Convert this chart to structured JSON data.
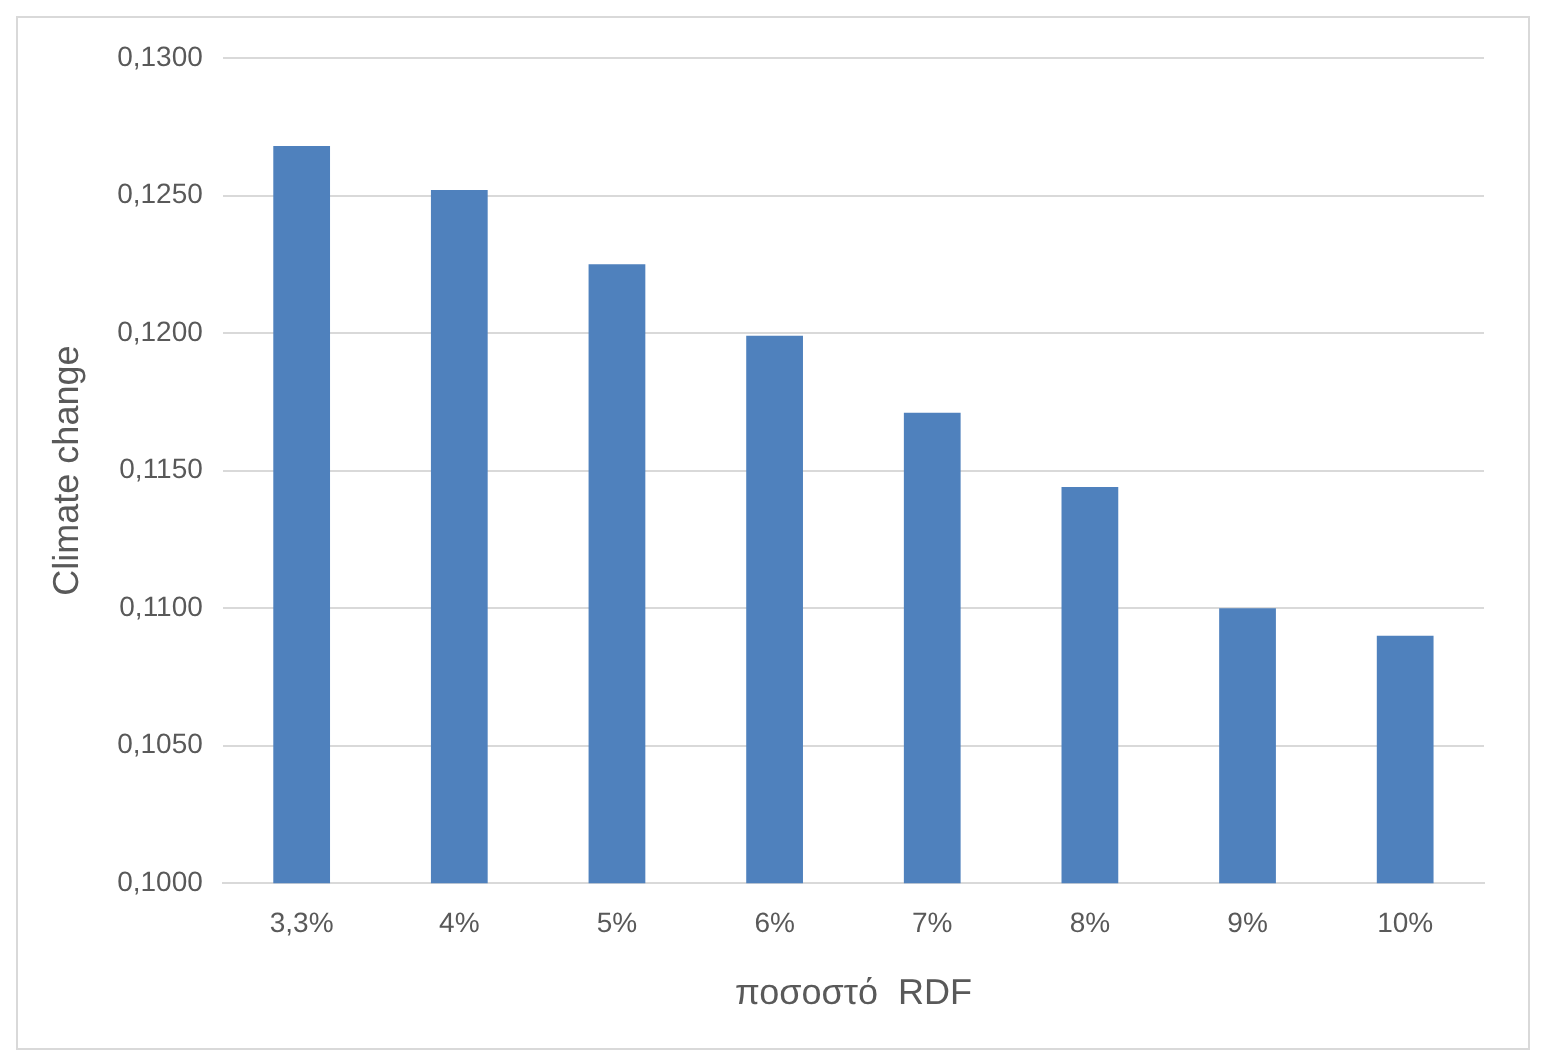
{
  "chart_data": {
    "type": "bar",
    "xlabel": "ποσοστό  RDF",
    "ylabel": "Climate change",
    "categories": [
      "3,3%",
      "4%",
      "5%",
      "6%",
      "7%",
      "8%",
      "9%",
      "10%"
    ],
    "values": [
      0.1268,
      0.1252,
      0.1225,
      0.1199,
      0.1171,
      0.1144,
      0.11,
      0.109
    ],
    "color": "#4f81bd",
    "ylim": [
      0.1,
      0.13
    ],
    "yticks": [
      {
        "value": 0.1,
        "label": "0,1000"
      },
      {
        "value": 0.105,
        "label": "0,1050"
      },
      {
        "value": 0.11,
        "label": "0,1100"
      },
      {
        "value": 0.115,
        "label": "0,1150"
      },
      {
        "value": 0.12,
        "label": "0,1200"
      },
      {
        "value": 0.125,
        "label": "0,1250"
      },
      {
        "value": 0.13,
        "label": "0,1300"
      }
    ],
    "grid": "y"
  }
}
